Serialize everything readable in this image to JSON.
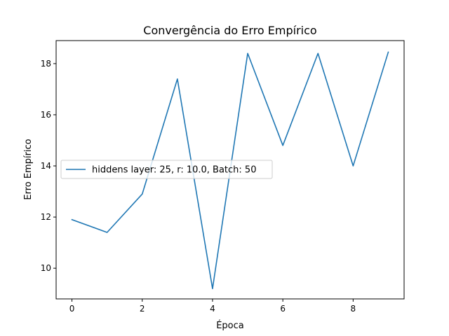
{
  "chart_data": {
    "type": "line",
    "title": "Convergência do Erro Empírico",
    "xlabel": "Época",
    "ylabel": "Erro Empírico",
    "xlim": [
      -0.45,
      9.45
    ],
    "ylim": [
      8.8,
      18.9
    ],
    "xticks": [
      0,
      2,
      4,
      6,
      8
    ],
    "yticks": [
      10,
      12,
      14,
      16,
      18
    ],
    "grid": false,
    "legend_position": "center-left",
    "series": [
      {
        "name": "hiddens layer: 25, r: 10.0, Batch: 50",
        "color": "#1f77b4",
        "x": [
          0,
          1,
          2,
          3,
          4,
          5,
          6,
          7,
          8,
          9
        ],
        "y": [
          11.9,
          11.4,
          12.9,
          17.4,
          9.2,
          18.4,
          14.8,
          18.4,
          14.0,
          18.45
        ]
      }
    ]
  }
}
